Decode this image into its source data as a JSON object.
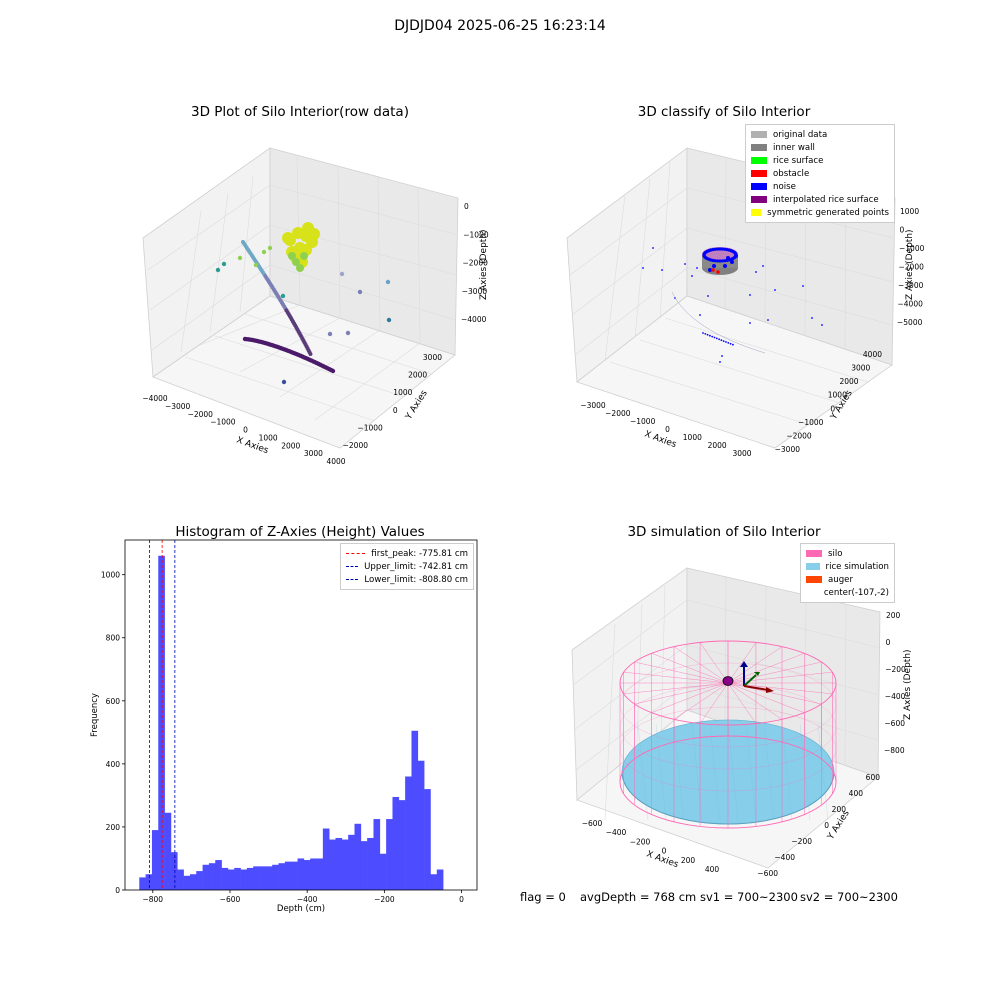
{
  "figure": {
    "suptitle": "DJDJD04 2025-06-25 16:23:14",
    "footer": {
      "flag": "flag = 0",
      "avg_depth": "avgDepth = 768 cm",
      "sv1": "sv1 = 700~2300",
      "sv2": "sv2 = 700~2300"
    }
  },
  "chart_data": [
    {
      "type": "scatter",
      "title": "3D Plot of Silo Interior(row data)",
      "xlabel": "X Axies",
      "ylabel": "Y Axies",
      "zlabel": "Z Axies (Depth)",
      "x_ticks": [
        "−4000",
        "−3000",
        "−2000",
        "−1000",
        "0",
        "1000",
        "2000",
        "3000",
        "4000"
      ],
      "y_ticks": [
        "−2000",
        "−1000",
        "0",
        "1000",
        "2000",
        "3000"
      ],
      "z_ticks": [
        "−4000",
        "−3000",
        "−2000",
        "−1000",
        "0"
      ],
      "xlim": [
        -4000,
        4000
      ],
      "ylim": [
        -2500,
        3500
      ],
      "zlim": [
        -4500,
        200
      ],
      "colormap": "viridis",
      "grid": true
    },
    {
      "type": "scatter",
      "title": "3D classify of Silo Interior",
      "xlabel": "X Axies",
      "ylabel": "Y Axies",
      "zlabel": "Z Axies (Depth)",
      "x_ticks": [
        "−3000",
        "−2000",
        "−1000",
        "0",
        "1000",
        "2000",
        "3000"
      ],
      "y_ticks": [
        "−3000",
        "−2000",
        "−1000",
        "0",
        "1000",
        "2000",
        "3000",
        "4000"
      ],
      "z_ticks": [
        "−5000",
        "−4000",
        "−3000",
        "−2000",
        "−1000",
        "0",
        "1000"
      ],
      "legend_position": "top-right",
      "legend": [
        {
          "label": "original data",
          "color": "#b0b0b0"
        },
        {
          "label": "inner wall",
          "color": "#808080"
        },
        {
          "label": "rice surface",
          "color": "#00ff00"
        },
        {
          "label": "obstacle",
          "color": "#ff0000"
        },
        {
          "label": "noise",
          "color": "#0000ff"
        },
        {
          "label": "interpolated rice surface",
          "color": "#800080"
        },
        {
          "label": "symmetric generated points",
          "color": "#ffff00"
        }
      ],
      "grid": true
    },
    {
      "type": "bar",
      "title": "Histogram of Z-Axies (Height) Values",
      "xlabel": "Depth (cm)",
      "ylabel": "Frequency",
      "bar_color": "#4d4dff",
      "xlim": [
        -872,
        40
      ],
      "ylim": [
        0,
        1110
      ],
      "x_ticks": [
        -800,
        -600,
        -400,
        -200,
        0
      ],
      "x_tick_labels": [
        "−800",
        "−600",
        "−400",
        "−200",
        "0"
      ],
      "y_ticks": [
        0,
        200,
        400,
        600,
        800,
        1000
      ],
      "y_tick_labels": [
        "0",
        "200",
        "400",
        "600",
        "800",
        "1000"
      ],
      "bin_start": -835,
      "bin_width": 16.4,
      "values": [
        40,
        50,
        190,
        1060,
        245,
        120,
        65,
        45,
        50,
        60,
        80,
        85,
        95,
        70,
        65,
        70,
        65,
        70,
        75,
        75,
        75,
        80,
        85,
        90,
        90,
        100,
        95,
        100,
        100,
        195,
        160,
        165,
        160,
        175,
        210,
        155,
        165,
        225,
        115,
        225,
        295,
        285,
        360,
        505,
        410,
        320,
        50,
        65
      ],
      "vlines": [
        {
          "label": "first_peak: -775.81 cm",
          "x": -775.81,
          "color": "#ff0000"
        },
        {
          "label": "Upper_limit: -742.81 cm",
          "x": -742.81,
          "color": "#0000b0"
        },
        {
          "label": "Lower_limit: -808.80 cm",
          "x": -808.8,
          "color": "#0000b0"
        }
      ],
      "legend_position": "top-right"
    },
    {
      "type": "surface",
      "title": "3D simulation of Silo Interior",
      "xlabel": "X Axies",
      "ylabel": "Y Axies",
      "zlabel": "Z Axies (Depth)",
      "x_ticks": [
        "−600",
        "−400",
        "−200",
        "0",
        "200",
        "400"
      ],
      "y_ticks": [
        "−600",
        "−400",
        "−200",
        "0",
        "200",
        "400",
        "600"
      ],
      "z_ticks": [
        "−800",
        "−600",
        "−400",
        "−200",
        "0",
        "200"
      ],
      "legend_position": "top-right",
      "legend": [
        {
          "label": "silo",
          "color": "#ff69b4"
        },
        {
          "label": "rice simulation",
          "color": "#87ceeb"
        },
        {
          "label": "auger",
          "color": "#ff4500"
        },
        {
          "label": "center(-107,-2)",
          "color": ""
        }
      ],
      "grid": true
    }
  ]
}
